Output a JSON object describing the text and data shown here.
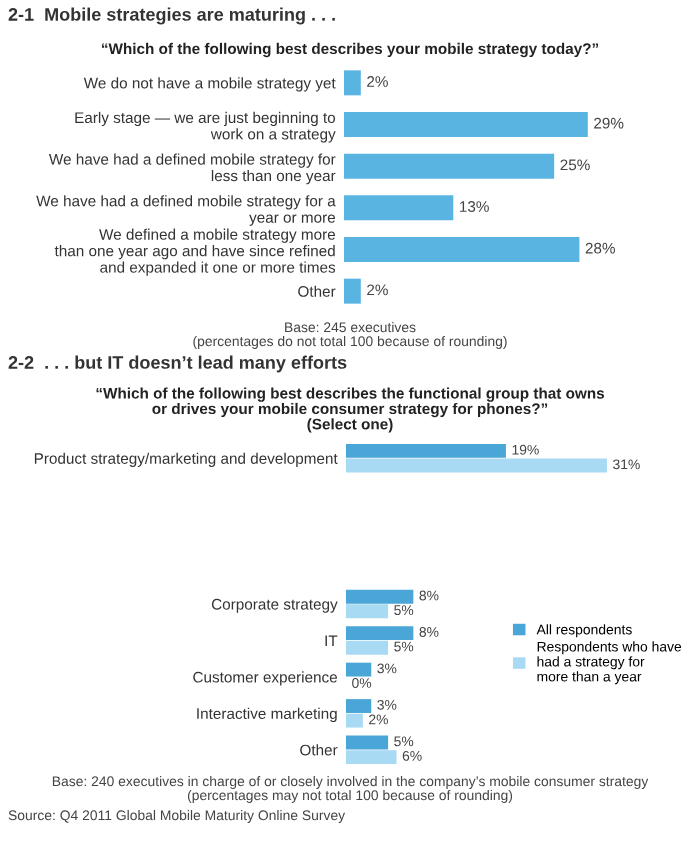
{
  "chart_data": [
    {
      "type": "bar",
      "orientation": "horizontal",
      "title": "2-1  Mobile strategies are maturing . . .",
      "subtitle": "“Which of the following best describes your mobile strategy today?”",
      "categories": [
        "We do not have a mobile strategy yet",
        "Early stage — we are just beginning to\nwork on a strategy",
        "We have had a defined mobile strategy for\nless than one year",
        "We have had a defined mobile strategy for a\nyear or more",
        "We defined a mobile strategy more\nthan one year ago and have since refined\nand expanded it one or more times",
        "Other"
      ],
      "series": [
        {
          "color": "#5ab4e2",
          "values": [
            2,
            29,
            25,
            13,
            28,
            2
          ],
          "value_labels": [
            "2%",
            "29%",
            "25%",
            "13%",
            "28%",
            "2%"
          ]
        }
      ],
      "annotations": [
        "Base: 245 executives\n(percentages do not total 100 because of rounding)"
      ]
    },
    {
      "type": "bar",
      "orientation": "horizontal",
      "title": "2-2  . . . but IT doesn’t lead many efforts",
      "subtitle": "“Which of the following best describes the functional group that owns\nor drives your mobile consumer strategy for phones?”\n(Select one)",
      "categories": [
        "Product strategy/marketing and development",
        null,
        null,
        null,
        "Corporate strategy",
        "IT",
        "Customer experience",
        "Interactive marketing",
        "Other"
      ],
      "series": [
        {
          "name": "All respondents",
          "color": "#4aa6d6",
          "values": [
            19,
            null,
            null,
            null,
            8,
            8,
            3,
            3,
            5
          ],
          "value_labels": [
            "19%",
            null,
            null,
            null,
            "8%",
            "8%",
            "3%",
            "3%",
            "5%"
          ]
        },
        {
          "name": "Respondents who have\nhad a strategy for\nmore than a year",
          "color": "#a9daf3",
          "values": [
            31,
            null,
            null,
            null,
            5,
            5,
            0,
            2,
            6
          ],
          "value_labels": [
            "31%",
            null,
            null,
            null,
            "5%",
            "5%",
            "0%",
            "2%",
            "6%"
          ]
        }
      ],
      "legend": "right",
      "annotations": [
        "Base: 240 executives in charge of or closely involved in the company’s mobile consumer strategy\n(percentages may not total 100 because of rounding)",
        "Source: Q4 2011 Global Mobile Maturity Online Survey"
      ]
    }
  ]
}
